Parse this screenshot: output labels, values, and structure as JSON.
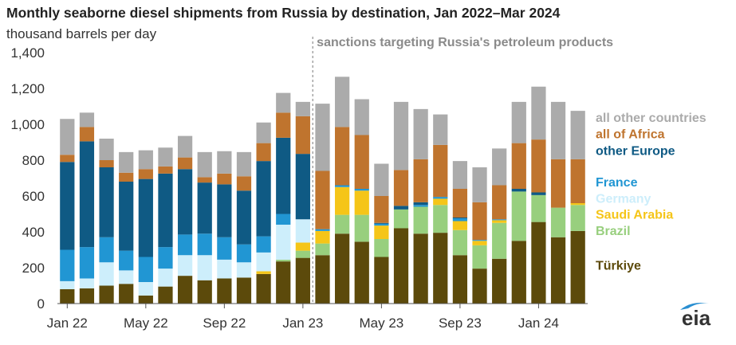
{
  "page": {
    "title": "Monthly seaborne diesel shipments from Russia by destination, Jan 2022–Mar 2024",
    "subtitle": "thousand barrels per day",
    "logo_text": "eia"
  },
  "chart_data": {
    "type": "bar",
    "stacked": true,
    "title": "Monthly seaborne diesel shipments from Russia by destination, Jan 2022–Mar 2024",
    "ylabel": "thousand barrels per day",
    "xlabel": "",
    "ylim": [
      0,
      1400
    ],
    "yticks": [
      0,
      200,
      400,
      600,
      800,
      1000,
      1200,
      1400
    ],
    "ytick_labels": [
      "0",
      "200",
      "400",
      "600",
      "800",
      "1,000",
      "1,200",
      "1,400"
    ],
    "grid": false,
    "legend_placement": "right",
    "annotation": {
      "label": "sanctions targeting Russia's petroleum products",
      "x_before": "Feb 23"
    },
    "x_tick_labels": [
      {
        "category": "Jan 22",
        "label": "Jan 22"
      },
      {
        "category": "May 22",
        "label": "May 22"
      },
      {
        "category": "Sep 22",
        "label": "Sep 22"
      },
      {
        "category": "Jan 23",
        "label": "Jan 23"
      },
      {
        "category": "May 23",
        "label": "May 23"
      },
      {
        "category": "Sep 23",
        "label": "Sep 23"
      },
      {
        "category": "Jan 24",
        "label": "Jan 24"
      }
    ],
    "categories": [
      "Jan 22",
      "Feb 22",
      "Mar 22",
      "Apr 22",
      "May 22",
      "Jun 22",
      "Jul 22",
      "Aug 22",
      "Sep 22",
      "Oct 22",
      "Nov 22",
      "Dec 22",
      "Jan 23",
      "Feb 23",
      "Mar 23",
      "Apr 23",
      "May 23",
      "Jun 23",
      "Jul 23",
      "Aug 23",
      "Sep 23",
      "Oct 23",
      "Nov 23",
      "Dec 23",
      "Jan 24",
      "Feb 24",
      "Mar 24"
    ],
    "series": [
      {
        "name": "Türkiye",
        "color": "#5c4a0b",
        "values": [
          80,
          85,
          100,
          110,
          45,
          95,
          155,
          130,
          140,
          145,
          165,
          235,
          255,
          270,
          390,
          345,
          260,
          420,
          390,
          395,
          270,
          195,
          250,
          350,
          455,
          370,
          405
        ]
      },
      {
        "name": "Brazil",
        "color": "#98cf7e",
        "values": [
          0,
          0,
          0,
          0,
          0,
          0,
          0,
          0,
          0,
          0,
          0,
          10,
          40,
          65,
          105,
          150,
          100,
          105,
          150,
          155,
          140,
          130,
          200,
          275,
          150,
          165,
          145
        ]
      },
      {
        "name": "Saudi Arabia",
        "color": "#f5c518",
        "values": [
          0,
          0,
          0,
          0,
          0,
          0,
          0,
          0,
          0,
          0,
          15,
          0,
          45,
          70,
          155,
          135,
          75,
          0,
          0,
          35,
          50,
          25,
          15,
          0,
          0,
          0,
          10
        ]
      },
      {
        "name": "Germany",
        "color": "#cdeefb",
        "values": [
          45,
          55,
          130,
          75,
          75,
          100,
          115,
          140,
          105,
          85,
          105,
          195,
          130,
          0,
          0,
          0,
          0,
          0,
          0,
          0,
          0,
          0,
          0,
          0,
          0,
          0,
          0
        ]
      },
      {
        "name": "France",
        "color": "#2196d3",
        "values": [
          175,
          175,
          140,
          110,
          140,
          120,
          115,
          120,
          125,
          100,
          90,
          60,
          0,
          10,
          10,
          10,
          10,
          0,
          10,
          10,
          15,
          5,
          5,
          0,
          0,
          0,
          0
        ]
      },
      {
        "name": "other Europe",
        "color": "#0f5a84",
        "values": [
          490,
          590,
          390,
          385,
          435,
          410,
          365,
          285,
          295,
          300,
          420,
          425,
          365,
          0,
          0,
          0,
          5,
          20,
          15,
          0,
          5,
          0,
          0,
          15,
          15,
          0,
          0
        ]
      },
      {
        "name": "all of Africa",
        "color": "#bf742e",
        "values": [
          40,
          80,
          40,
          50,
          55,
          40,
          65,
          30,
          60,
          80,
          100,
          140,
          210,
          325,
          325,
          300,
          150,
          200,
          240,
          290,
          160,
          210,
          190,
          255,
          295,
          270,
          245
        ]
      },
      {
        "name": "all other countries",
        "color": "#ababab",
        "values": [
          200,
          80,
          120,
          115,
          105,
          105,
          120,
          140,
          125,
          135,
          115,
          110,
          80,
          375,
          280,
          200,
          180,
          380,
          280,
          170,
          155,
          195,
          205,
          230,
          295,
          320,
          270
        ]
      }
    ],
    "legend": [
      {
        "name": "all other countries",
        "color": "#ababab",
        "y": 1040
      },
      {
        "name": "all of Africa",
        "color": "#bf742e",
        "y": 950
      },
      {
        "name": "other Europe",
        "color": "#0f5a84",
        "y": 855
      },
      {
        "name": "France",
        "color": "#2196d3",
        "y": 680
      },
      {
        "name": "Germany",
        "color": "#cdeefb",
        "y": 590
      },
      {
        "name": "Saudi Arabia",
        "color": "#f5c518",
        "y": 500
      },
      {
        "name": "Brazil",
        "color": "#98cf7e",
        "y": 410
      },
      {
        "name": "Türkiye",
        "color": "#5c4a0b",
        "y": 215
      }
    ]
  }
}
